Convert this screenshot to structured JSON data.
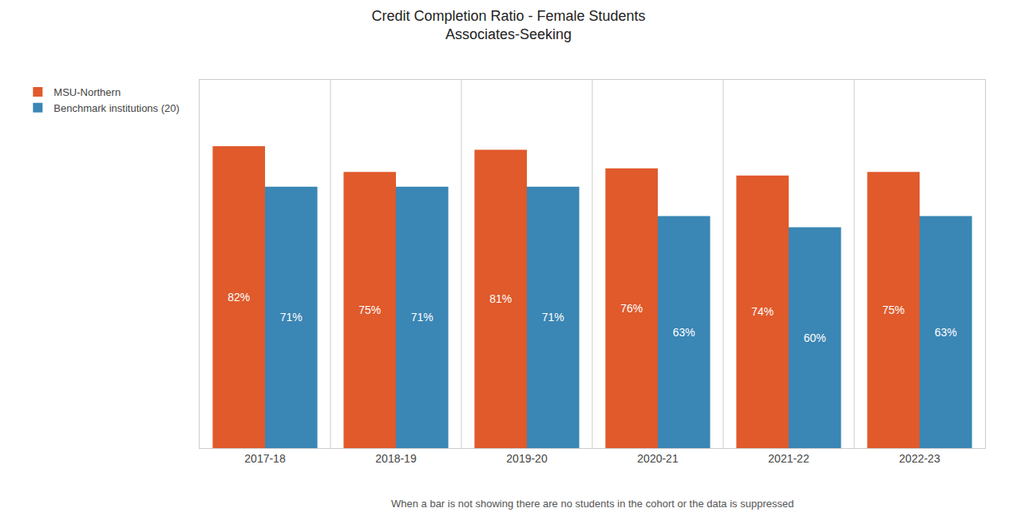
{
  "chart_data": {
    "type": "bar",
    "title": "Credit Completion Ratio - Female Students",
    "subtitle": "Associates-Seeking",
    "categories": [
      "2017-18",
      "2018-19",
      "2019-20",
      "2020-21",
      "2021-22",
      "2022-23"
    ],
    "series": [
      {
        "name": "MSU-Northern",
        "color": "#E05A2B",
        "values": [
          82,
          75,
          81,
          76,
          74,
          75
        ],
        "value_labels": [
          "82%",
          "75%",
          "81%",
          "76%",
          "74%",
          "75%"
        ]
      },
      {
        "name": "Benchmark institutions (20)",
        "color": "#3A86B4",
        "values": [
          71,
          71,
          71,
          63,
          60,
          63
        ],
        "value_labels": [
          "71%",
          "71%",
          "71%",
          "63%",
          "60%",
          "63%"
        ]
      }
    ],
    "annotations": [
      "When a bar is not showing there are no students in the cohort or the data is suppressed"
    ],
    "ylim": [
      0,
      100
    ],
    "grid": false,
    "legend": "left",
    "data_labels": true,
    "tick_labels": "x"
  }
}
